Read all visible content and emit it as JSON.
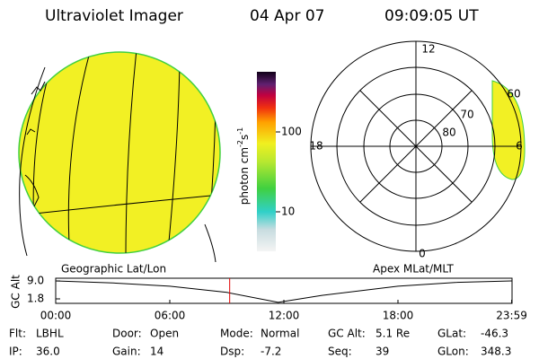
{
  "header": {
    "instrument": "Ultraviolet Imager",
    "date": "04 Apr 07",
    "time": "09:09:05 UT"
  },
  "colorbar": {
    "label": [
      "photon cm",
      "-2",
      "s",
      "-1"
    ],
    "ticks": [
      "100",
      "10"
    ]
  },
  "left_panel": {
    "caption": "Geographic Lat/Lon"
  },
  "right_panel": {
    "caption": "Apex MLat/MLT",
    "mlt_labels": [
      "12",
      "18",
      "6",
      "0"
    ],
    "mlat_labels": [
      "60",
      "70",
      "80"
    ]
  },
  "altitude_plot": {
    "axis_label": "GC Alt",
    "x": [
      0,
      3,
      6,
      9,
      11.7,
      14,
      18,
      21,
      23.98
    ],
    "values": [
      9.0,
      8.2,
      6.9,
      4.4,
      0.4,
      3.2,
      6.9,
      8.4,
      9.0
    ],
    "xlim": [
      0,
      24
    ],
    "ylim": [
      0,
      10.1
    ],
    "xticks": [
      {
        "value": 0,
        "label": "00:00"
      },
      {
        "value": 6,
        "label": "06:00"
      },
      {
        "value": 12,
        "label": "12:00"
      },
      {
        "value": 18,
        "label": "18:00"
      },
      {
        "value": 23.98,
        "label": "23:59"
      }
    ],
    "yticks": [
      {
        "value": 9,
        "label": "9.0"
      },
      {
        "value": 1.8,
        "label": "1.8"
      }
    ],
    "marker_hour": 9.15
  },
  "status": [
    [
      {
        "label": "Flt:",
        "value": "LBHL"
      },
      {
        "label": "Door:",
        "value": "Open"
      },
      {
        "label": "Mode:",
        "value": "Normal"
      },
      {
        "label": "GC Alt:",
        "value": "5.1 Re"
      },
      {
        "label": "GLat:",
        "value": "-46.3"
      }
    ],
    [
      {
        "label": "IP:",
        "value": "36.0"
      },
      {
        "label": "Gain:",
        "value": "14"
      },
      {
        "label": "Dsp:",
        "value": "-7.2"
      },
      {
        "label": "Seq:",
        "value": "39"
      },
      {
        "label": "GLon:",
        "value": "348.3"
      }
    ]
  ]
}
